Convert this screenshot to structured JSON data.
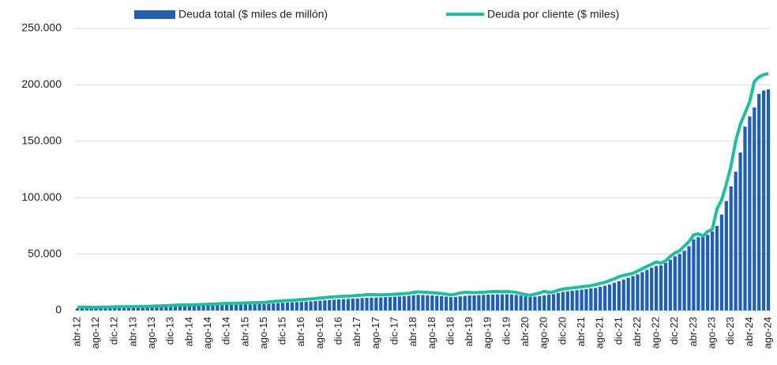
{
  "chart_data": {
    "type": "combo",
    "categories": [
      "abr-12",
      null,
      null,
      null,
      "ago-12",
      null,
      null,
      null,
      "dic-12",
      null,
      null,
      null,
      "abr-13",
      null,
      null,
      null,
      "ago-13",
      null,
      null,
      null,
      "dic-13",
      null,
      null,
      null,
      "abr-14",
      null,
      null,
      null,
      "ago-14",
      null,
      null,
      null,
      "dic-14",
      null,
      null,
      null,
      "abr-15",
      null,
      null,
      null,
      "ago-15",
      null,
      null,
      null,
      "dic-15",
      null,
      null,
      null,
      "abr-16",
      null,
      null,
      null,
      "ago-16",
      null,
      null,
      null,
      "dic-16",
      null,
      null,
      null,
      "abr-17",
      null,
      null,
      null,
      "ago-17",
      null,
      null,
      null,
      "dic-17",
      null,
      null,
      null,
      "abr-18",
      null,
      null,
      null,
      "ago-18",
      null,
      null,
      null,
      "dic-18",
      null,
      null,
      null,
      "abr-19",
      null,
      null,
      null,
      "ago-19",
      null,
      null,
      null,
      "dic-19",
      null,
      null,
      null,
      "abr-20",
      null,
      null,
      null,
      "ago-20",
      null,
      null,
      null,
      "dic-20",
      null,
      null,
      null,
      "abr-21",
      null,
      null,
      null,
      "ago-21",
      null,
      null,
      null,
      "dic-21",
      null,
      null,
      null,
      "abr-22",
      null,
      null,
      null,
      "ago-22",
      null,
      null,
      null,
      "dic-22",
      null,
      null,
      null,
      "abr-23",
      null,
      null,
      null,
      "ago-23",
      null,
      null,
      null,
      "dic-23",
      null,
      null,
      null,
      "abr-24",
      null,
      null,
      null,
      "ago-24"
    ],
    "series": [
      {
        "name": "Deuda total ($ miles de millón)",
        "type": "bar",
        "color": "#1f5fb5",
        "values": [
          1800,
          1800,
          1900,
          1900,
          2000,
          2000,
          2100,
          2200,
          2300,
          2400,
          2500,
          2500,
          2600,
          2700,
          2800,
          2900,
          3000,
          3100,
          3200,
          3300,
          3500,
          3600,
          3700,
          3800,
          3900,
          4000,
          4100,
          4200,
          4300,
          4400,
          4500,
          4700,
          4900,
          5000,
          5100,
          5200,
          5300,
          5400,
          5500,
          5600,
          5700,
          5900,
          6200,
          6500,
          6800,
          7000,
          7200,
          7400,
          7600,
          7800,
          8100,
          8400,
          8700,
          9000,
          9300,
          9600,
          9900,
          10100,
          10300,
          10500,
          10700,
          11000,
          11200,
          11400,
          11500,
          11600,
          11800,
          12000,
          12200,
          12400,
          12700,
          13000,
          13500,
          13800,
          13700,
          13500,
          13300,
          13000,
          12700,
          12300,
          11800,
          12000,
          12500,
          13000,
          13300,
          13400,
          13600,
          13800,
          14000,
          14200,
          14300,
          14300,
          14400,
          14200,
          13800,
          13200,
          12500,
          12000,
          12300,
          12800,
          13500,
          14000,
          14500,
          15500,
          16500,
          17000,
          17500,
          18000,
          18500,
          19000,
          19500,
          20000,
          21000,
          22000,
          23000,
          24500,
          26000,
          27500,
          29000,
          30500,
          32000,
          34000,
          36000,
          38000,
          39500,
          40000,
          42000,
          45000,
          48000,
          50000,
          53000,
          57000,
          63000,
          65000,
          66000,
          67000,
          70000,
          75000,
          85000,
          97000,
          110000,
          123000,
          140000,
          163000,
          172000,
          180000,
          192000,
          195000,
          196000
        ]
      },
      {
        "name": "Deuda por cliente ($ miles)",
        "type": "line",
        "color": "#1dbf9c",
        "values": [
          3000,
          3000,
          3000,
          2900,
          2900,
          3000,
          3000,
          3100,
          3200,
          3300,
          3300,
          3400,
          3400,
          3500,
          3600,
          3700,
          3800,
          4000,
          4100,
          4300,
          4500,
          4700,
          4800,
          4900,
          5000,
          5100,
          5200,
          5400,
          5500,
          5700,
          5900,
          6100,
          6300,
          6400,
          6500,
          6600,
          6700,
          6800,
          6900,
          7000,
          7200,
          7500,
          8000,
          8300,
          8600,
          8800,
          9000,
          9300,
          9600,
          9900,
          10200,
          10600,
          11000,
          11400,
          11800,
          12100,
          12400,
          12600,
          12800,
          13000,
          13300,
          13600,
          14000,
          14200,
          14000,
          13800,
          14000,
          14200,
          14400,
          14600,
          14900,
          15300,
          16000,
          16500,
          16300,
          16000,
          15800,
          15500,
          15000,
          14500,
          13800,
          14500,
          15500,
          16000,
          16000,
          15800,
          16000,
          16200,
          16500,
          16800,
          16800,
          16600,
          16800,
          16500,
          16000,
          15000,
          14000,
          13500,
          14500,
          15500,
          17000,
          16000,
          16500,
          18000,
          19000,
          19500,
          20000,
          20500,
          21000,
          21500,
          22000,
          23000,
          24000,
          25000,
          26500,
          28000,
          30000,
          31000,
          32000,
          33000,
          35000,
          37000,
          39000,
          41000,
          43000,
          42000,
          44000,
          48000,
          51000,
          53000,
          57000,
          61000,
          67000,
          68000,
          66000,
          70000,
          72000,
          90000,
          98000,
          112000,
          128000,
          150000,
          165000,
          175000,
          185000,
          203000,
          207000,
          209000,
          210000
        ]
      }
    ],
    "ylim": [
      0,
      250000
    ],
    "yticks": [
      0,
      {
        "value": 50000,
        "label": "50.000"
      },
      {
        "value": 100000,
        "label": "100.000"
      },
      {
        "value": 150000,
        "label": "150.000"
      },
      {
        "value": 200000,
        "label": "200.000"
      },
      {
        "value": 250000,
        "label": "250.000"
      }
    ],
    "grid": true,
    "legend": "top"
  }
}
